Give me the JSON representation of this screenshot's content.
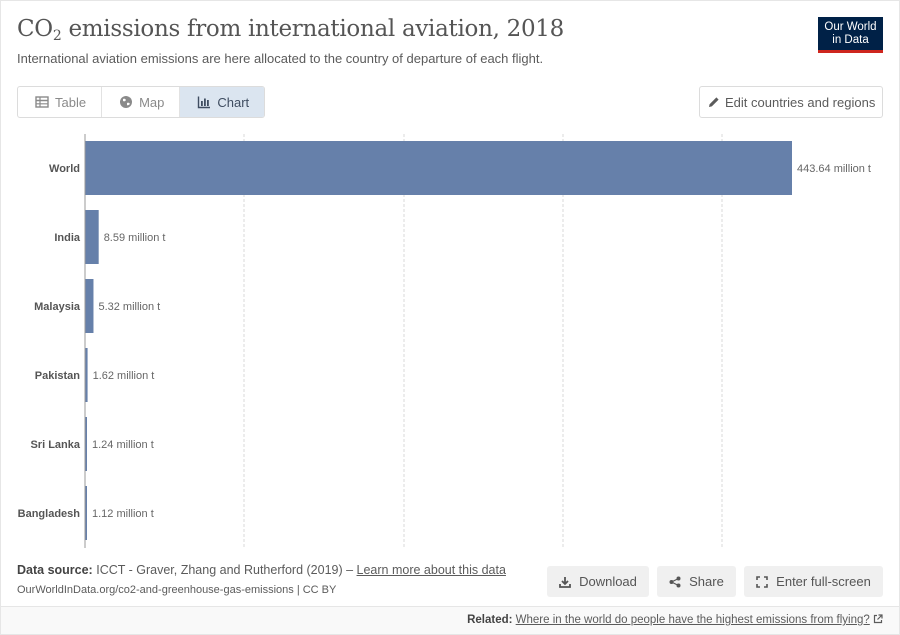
{
  "header": {
    "title_main": "CO",
    "title_sub": "2",
    "title_rest": " emissions from international aviation, 2018",
    "subtitle": "International aviation emissions are here allocated to the country of departure of each flight.",
    "logo_line1": "Our World",
    "logo_line2": "in Data"
  },
  "tabs": [
    {
      "label": "Table",
      "icon": "table-icon",
      "active": false
    },
    {
      "label": "Map",
      "icon": "globe-icon",
      "active": false
    },
    {
      "label": "Chart",
      "icon": "chart-icon",
      "active": true
    }
  ],
  "edit_button": {
    "label": "Edit countries and regions",
    "icon": "pencil-icon"
  },
  "chart_data": {
    "type": "bar",
    "orientation": "horizontal",
    "categories": [
      "World",
      "India",
      "Malaysia",
      "Pakistan",
      "Sri Lanka",
      "Bangladesh"
    ],
    "values": [
      443.64,
      8.59,
      5.32,
      1.62,
      1.24,
      1.12
    ],
    "value_labels": [
      "443.64 million t",
      "8.59 million t",
      "5.32 million t",
      "1.62 million t",
      "1.24 million t",
      "1.12 million t"
    ],
    "unit": "million t",
    "xlim": [
      0,
      443.64
    ],
    "grid": true,
    "bar_color": "#6680aa"
  },
  "footer": {
    "source_label": "Data source:",
    "source_text": "ICCT - Graver, Zhang and Rutherford (2019) – ",
    "source_link": "Learn more about this data",
    "url_text": "OurWorldInData.org/co2-and-greenhouse-gas-emissions | CC BY",
    "download_label": "Download",
    "share_label": "Share",
    "fullscreen_label": "Enter full-screen",
    "related_label": "Related:",
    "related_link": "Where in the world do people have the highest emissions from flying?"
  }
}
